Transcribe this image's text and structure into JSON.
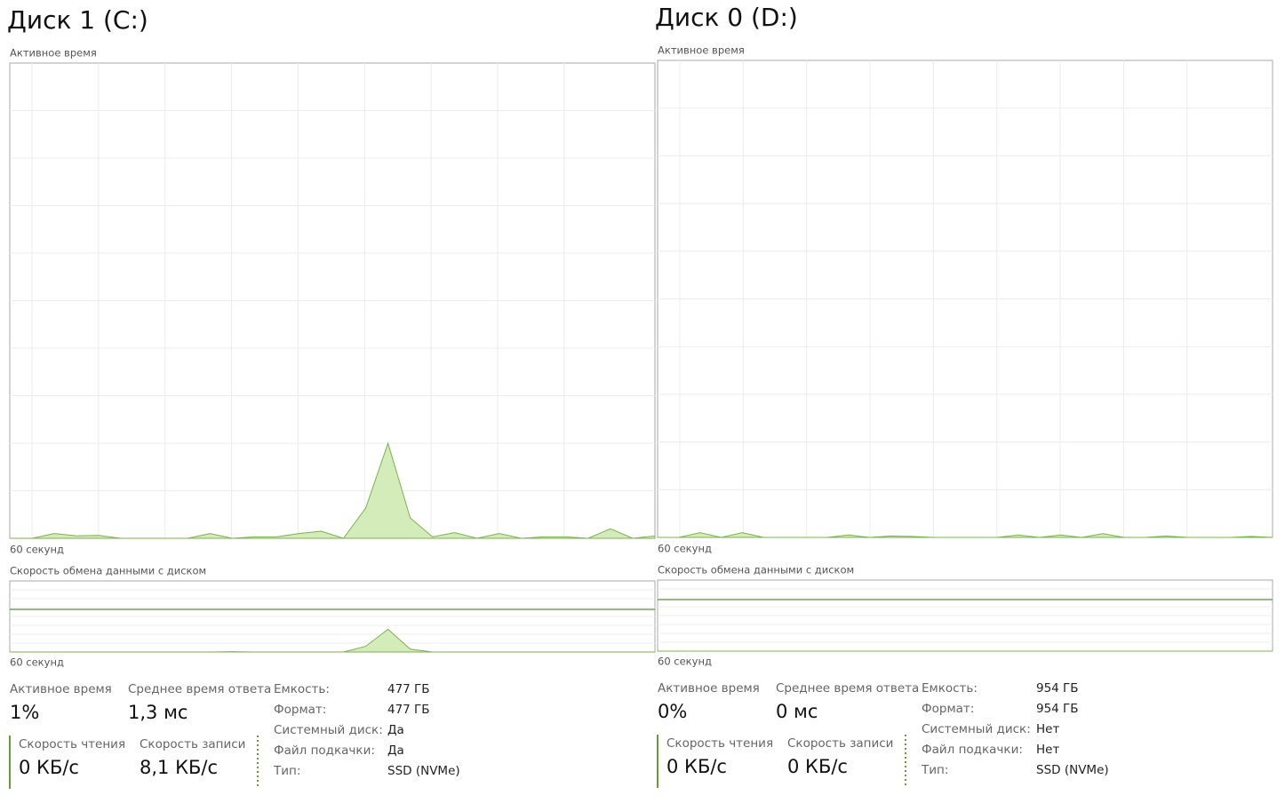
{
  "panels": [
    {
      "title": "Диск 1 (C:)",
      "active_label": "Активное время",
      "active_chart": {
        "ylim": [
          0,
          100
        ],
        "values": [
          0,
          0,
          1,
          0.5,
          0.6,
          0,
          0,
          0,
          0,
          1,
          0,
          0.3,
          0.3,
          1,
          1.5,
          0,
          6.4,
          20,
          4.3,
          0.3,
          1.2,
          0,
          1,
          0,
          0.3,
          0.3,
          0,
          2,
          0,
          0.5
        ]
      },
      "time_label": "60 секунд",
      "transfer_label": "Скорость обмена данными с диском",
      "transfer_chart": {
        "ylim": [
          0,
          100
        ],
        "values": [
          0,
          0,
          0,
          0,
          0,
          0,
          0,
          0,
          0,
          0,
          0.5,
          0,
          0,
          0,
          0,
          0,
          8,
          32,
          4,
          0,
          0,
          0,
          0,
          0,
          0,
          0,
          0,
          0,
          0,
          0
        ]
      },
      "time_label2": "60 секунд",
      "stats": [
        {
          "label": "Активное время",
          "value": "1%"
        },
        {
          "label": "Среднее время ответа",
          "value": "1,3 мс"
        },
        {
          "label": "Скорость чтения",
          "value": "0 КБ/с"
        },
        {
          "label": "Скорость записи",
          "value": "8,1 КБ/с"
        }
      ],
      "props": [
        [
          "Емкость:",
          "477 ГБ"
        ],
        [
          "Формат:",
          "477 ГБ"
        ],
        [
          "Системный диск:",
          "Да"
        ],
        [
          "Файл подкачки:",
          "Да"
        ],
        [
          "Тип:",
          "SSD (NVMe)"
        ]
      ]
    },
    {
      "title": "Диск 0 (D:)",
      "active_label": "Активное время",
      "active_chart": {
        "ylim": [
          0,
          100
        ],
        "values": [
          0,
          0,
          1,
          0,
          1,
          0,
          0,
          0,
          0,
          0.5,
          0,
          0.3,
          0.2,
          0,
          0,
          0,
          0,
          0.5,
          0,
          0.5,
          0,
          0.8,
          0,
          0,
          0.3,
          0,
          0,
          0,
          0.2,
          0
        ]
      },
      "time_label": "60 секунд",
      "transfer_label": "Скорость обмена данными с диском",
      "transfer_chart": {
        "ylim": [
          0,
          100
        ],
        "values": [
          0,
          0,
          0,
          0,
          0,
          0,
          0,
          0,
          0,
          0,
          0,
          0,
          0,
          0,
          0,
          0,
          0,
          0,
          0,
          0,
          0,
          0,
          0,
          0,
          0,
          0,
          0,
          0,
          0,
          0
        ]
      },
      "time_label2": "60 секунд",
      "stats": [
        {
          "label": "Активное время",
          "value": "0%"
        },
        {
          "label": "Среднее время ответа",
          "value": "0 мс"
        },
        {
          "label": "Скорость чтения",
          "value": "0 КБ/с"
        },
        {
          "label": "Скорость записи",
          "value": "0 КБ/с"
        }
      ],
      "props": [
        [
          "Емкость:",
          "954 ГБ"
        ],
        [
          "Формат:",
          "954 ГБ"
        ],
        [
          "Системный диск:",
          "Нет"
        ],
        [
          "Файл подкачки:",
          "Нет"
        ],
        [
          "Тип:",
          "SSD (NVMe)"
        ]
      ]
    }
  ]
}
